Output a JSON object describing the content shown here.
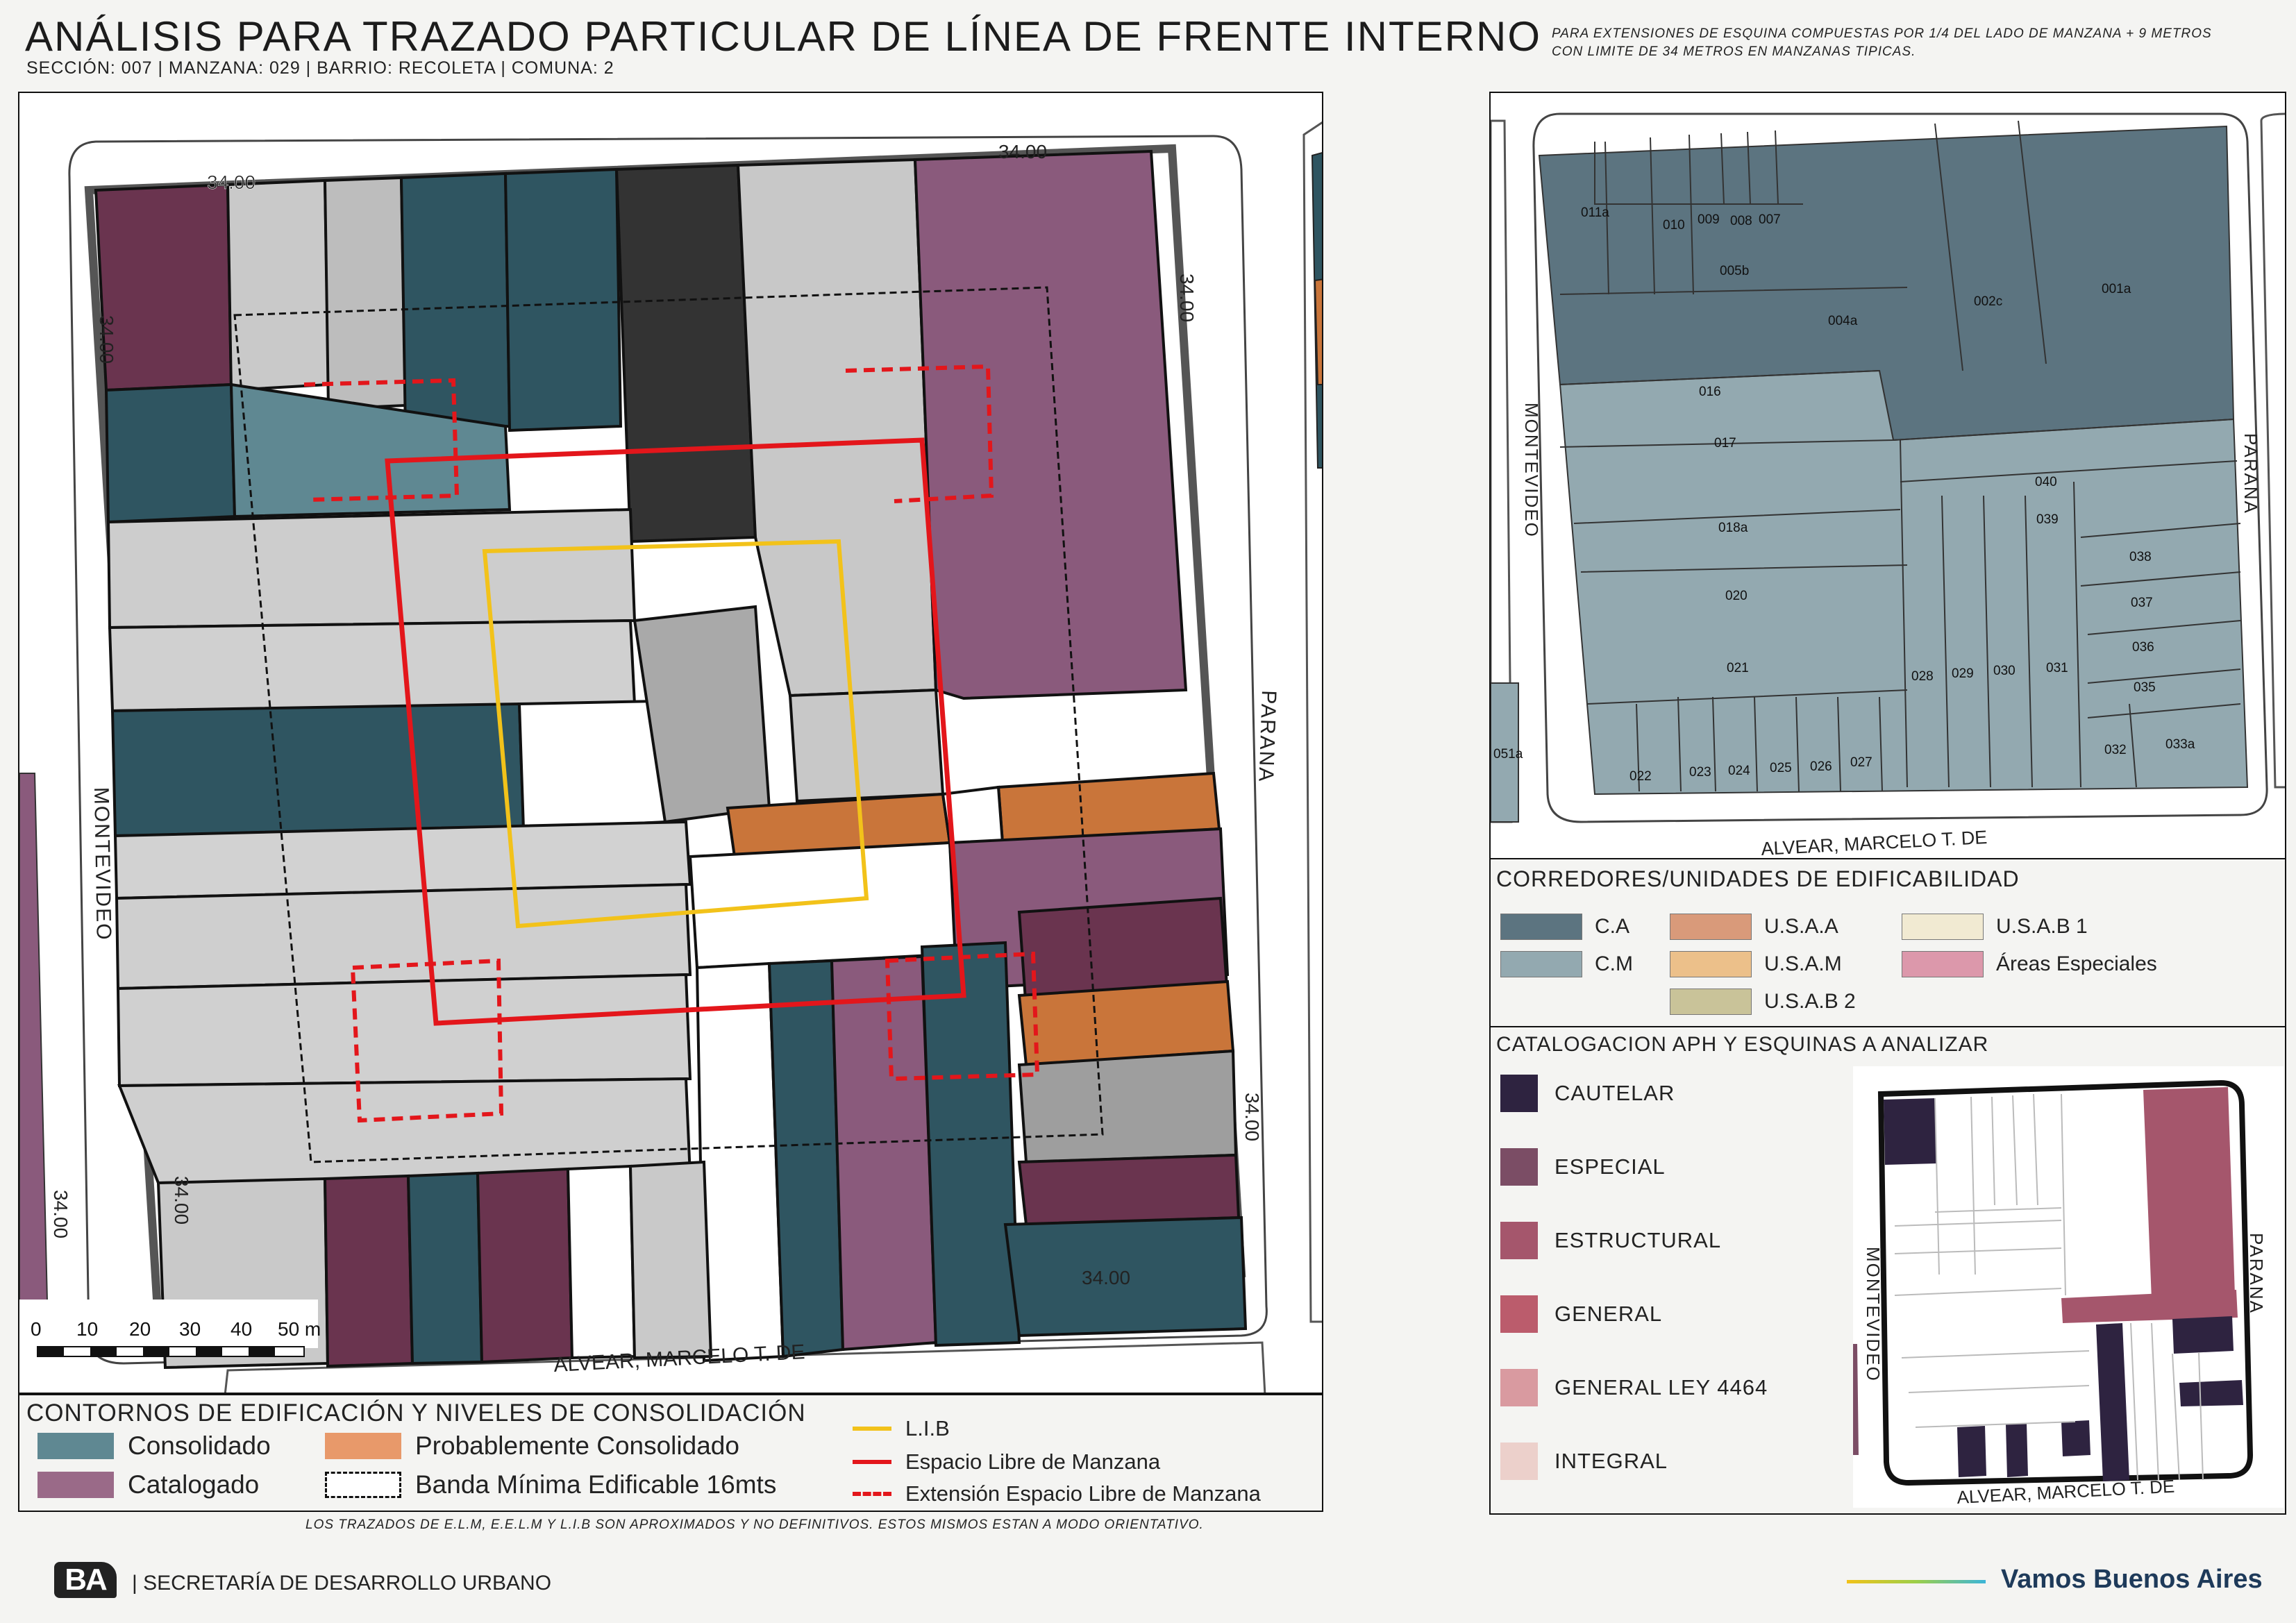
{
  "header": {
    "title": "ANÁLISIS PARA TRAZADO PARTICULAR DE LÍNEA DE FRENTE INTERNO",
    "subtitle": "SECCIÓN: 007 |  MANZANA: 029 | BARRIO: RECOLETA | COMUNA: 2",
    "note": "PARA EXTENSIONES DE ESQUINA COMPUESTAS POR 1/4 DEL LADO DE MANZANA + 9 METROS CON LIMITE DE 34 METROS EN MANZANAS TIPICAS."
  },
  "main_map": {
    "streets": {
      "west": "MONTEVIDEO",
      "east": "PARANA",
      "south": "ALVEAR, MARCELO T. DE"
    },
    "dimension_labels": [
      "34.00",
      "34.00",
      "34.00",
      "34.00",
      "34.00",
      "34.00",
      "34.00",
      "34.00"
    ],
    "scale": {
      "ticks": [
        "0",
        "10",
        "20",
        "30",
        "40",
        "50 m"
      ]
    }
  },
  "legend_main": {
    "title": "CONTORNOS DE EDIFICACIÓN Y NIVELES DE CONSOLIDACIÓN",
    "items": [
      {
        "label": "Consolidado",
        "color": "#5f8892"
      },
      {
        "label": "Probablemente Consolidado",
        "color": "#e8996a"
      },
      {
        "label": "Catalogado",
        "color": "#9a6a88"
      },
      {
        "label": "Banda Mínima Edificable 16mts",
        "color": "#ffffff"
      }
    ],
    "lines": [
      {
        "label": "L.I.B",
        "color": "#f2c21a",
        "style": "solid"
      },
      {
        "label": "Espacio Libre de Manzana",
        "color": "#e3161b",
        "style": "solid"
      },
      {
        "label": "Extensión Espacio Libre de Manzana",
        "color": "#e3161b",
        "style": "dashed"
      }
    ]
  },
  "parcel_map": {
    "streets": {
      "west": "MONTEVIDEO",
      "east": "PARANA",
      "south": "ALVEAR, MARCELO T. DE"
    },
    "parcels": [
      "011a",
      "010",
      "009",
      "008",
      "007",
      "005b",
      "004a",
      "002c",
      "001a",
      "016",
      "017",
      "018a",
      "040",
      "039",
      "038",
      "037",
      "036",
      "035",
      "020",
      "021",
      "028",
      "029",
      "030",
      "031",
      "032",
      "033a",
      "022",
      "023",
      "024",
      "025",
      "026",
      "027",
      "051a"
    ]
  },
  "legend_corredores": {
    "title": "CORREDORES/UNIDADES DE EDIFICABILIDAD",
    "items": [
      {
        "label": "C.A",
        "color": "#5c7480"
      },
      {
        "label": "U.S.A.A",
        "color": "#d99a7a"
      },
      {
        "label": "U.S.A.B 1",
        "color": "#f1ead2"
      },
      {
        "label": "C.M",
        "color": "#93a9b0"
      },
      {
        "label": "U.S.A.M",
        "color": "#ecc08a"
      },
      {
        "label": "Áreas Especiales",
        "color": "#dc98ab"
      },
      {
        "label": "U.S.A.B 2",
        "color": "#c9c399"
      }
    ]
  },
  "legend_catalogacion": {
    "title": "CATALOGACION APH Y ESQUINAS A ANALIZAR",
    "items": [
      {
        "label": "CAUTELAR",
        "color": "#2e2340"
      },
      {
        "label": "ESPECIAL",
        "color": "#7b4d65"
      },
      {
        "label": "ESTRUCTURAL",
        "color": "#a5566c"
      },
      {
        "label": "GENERAL",
        "color": "#bb5c6c"
      },
      {
        "label": "GENERAL LEY 4464",
        "color": "#d99aa0"
      },
      {
        "label": "INTEGRAL",
        "color": "#ecd0cb"
      }
    ]
  },
  "mini_map": {
    "streets": {
      "west": "MONTEVIDEO",
      "east": "PARANA",
      "south": "ALVEAR, MARCELO T. DE"
    }
  },
  "footer": {
    "disclaimer": "LOS TRAZADOS DE E.L.M, E.E.L.M Y L.I.B SON APROXIMADOS Y NO DEFINITIVOS. ESTOS MISMOS ESTAN A MODO ORIENTATIVO.",
    "logo": "BA",
    "agency": "| SECRETARÍA DE DESARROLLO URBANO",
    "slogan": "Vamos Buenos Aires"
  }
}
